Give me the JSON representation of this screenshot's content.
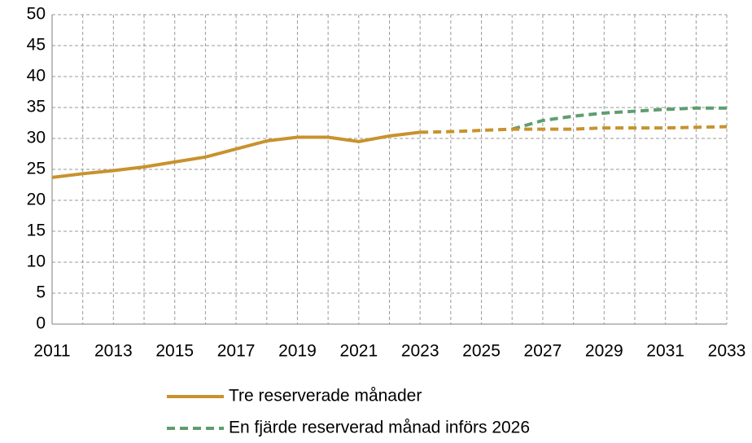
{
  "chart_data": {
    "type": "line",
    "x": [
      2011,
      2012,
      2013,
      2014,
      2015,
      2016,
      2017,
      2018,
      2019,
      2020,
      2021,
      2022,
      2023,
      2024,
      2025,
      2026,
      2027,
      2028,
      2029,
      2030,
      2031,
      2032,
      2033
    ],
    "series": [
      {
        "name": "Tre reserverade månader",
        "color": "#c8922d",
        "dashed": false,
        "values": [
          23.7,
          24.3,
          24.8,
          25.4,
          26.2,
          27.0,
          28.3,
          29.6,
          30.2,
          30.2,
          29.5,
          30.4,
          31.0,
          null,
          null,
          null,
          null,
          null,
          null,
          null,
          null,
          null,
          null
        ]
      },
      {
        "name": "En fjärde reserverad månad införs 2026",
        "color": "#5e9e6e",
        "dashed": true,
        "values": [
          null,
          null,
          null,
          null,
          null,
          null,
          null,
          null,
          null,
          null,
          null,
          null,
          null,
          null,
          null,
          31.5,
          32.9,
          33.6,
          34.1,
          34.4,
          34.7,
          34.9,
          34.9
        ]
      },
      {
        "color": "#c8922d",
        "dashed": true,
        "values": [
          null,
          null,
          null,
          null,
          null,
          null,
          null,
          null,
          null,
          null,
          null,
          null,
          31.0,
          31.1,
          31.3,
          31.5,
          31.5,
          31.5,
          31.7,
          31.7,
          31.7,
          31.8,
          31.9
        ]
      }
    ],
    "xlim": [
      2011,
      2033
    ],
    "xticks": [
      2011,
      2013,
      2015,
      2017,
      2019,
      2021,
      2023,
      2025,
      2027,
      2029,
      2031,
      2033
    ],
    "ylim": [
      0,
      50
    ],
    "yticks": [
      0,
      5,
      10,
      15,
      20,
      25,
      30,
      35,
      40,
      45,
      50
    ],
    "grid": true
  }
}
